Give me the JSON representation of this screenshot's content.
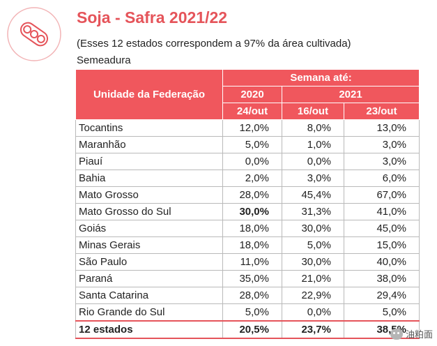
{
  "header": {
    "title": "Soja - Safra 2021/22",
    "subtitle": "(Esses 12 estados correspondem a 97% da área cultivada)",
    "section": "Semeadura",
    "logo_icon": "soybean-pod-icon"
  },
  "table": {
    "header_region": "Unidade da Federação",
    "header_week": "Semana até:",
    "year_2020": "2020",
    "year_2021": "2021",
    "dates": [
      "24/out",
      "16/out",
      "23/out"
    ],
    "rows": [
      {
        "name": "Tocantins",
        "v": [
          "12,0%",
          "8,0%",
          "13,0%"
        ]
      },
      {
        "name": "Maranhão",
        "v": [
          "5,0%",
          "1,0%",
          "3,0%"
        ]
      },
      {
        "name": "Piauí",
        "v": [
          "0,0%",
          "0,0%",
          "3,0%"
        ]
      },
      {
        "name": "Bahia",
        "v": [
          "2,0%",
          "3,0%",
          "6,0%"
        ]
      },
      {
        "name": "Mato Grosso",
        "v": [
          "28,0%",
          "45,4%",
          "67,0%"
        ]
      },
      {
        "name": "Mato Grosso do Sul",
        "v": [
          "30,0%",
          "31,3%",
          "41,0%"
        ]
      },
      {
        "name": "Goiás",
        "v": [
          "18,0%",
          "30,0%",
          "45,0%"
        ]
      },
      {
        "name": "Minas Gerais",
        "v": [
          "18,0%",
          "5,0%",
          "15,0%"
        ]
      },
      {
        "name": "São Paulo",
        "v": [
          "11,0%",
          "30,0%",
          "40,0%"
        ]
      },
      {
        "name": "Paraná",
        "v": [
          "35,0%",
          "21,0%",
          "38,0%"
        ]
      },
      {
        "name": "Santa Catarina",
        "v": [
          "28,0%",
          "22,9%",
          "29,4%"
        ]
      },
      {
        "name": "Rio Grande do Sul",
        "v": [
          "5,0%",
          "0,0%",
          "5,0%"
        ]
      }
    ],
    "total": {
      "name": "12 estados",
      "v": [
        "20,5%",
        "23,7%",
        "38,5%"
      ]
    }
  },
  "watermark": {
    "text": "油粕面",
    "icon": "wechat-icon"
  },
  "colors": {
    "accent": "#e5545a",
    "header_bg": "#f0575d"
  }
}
